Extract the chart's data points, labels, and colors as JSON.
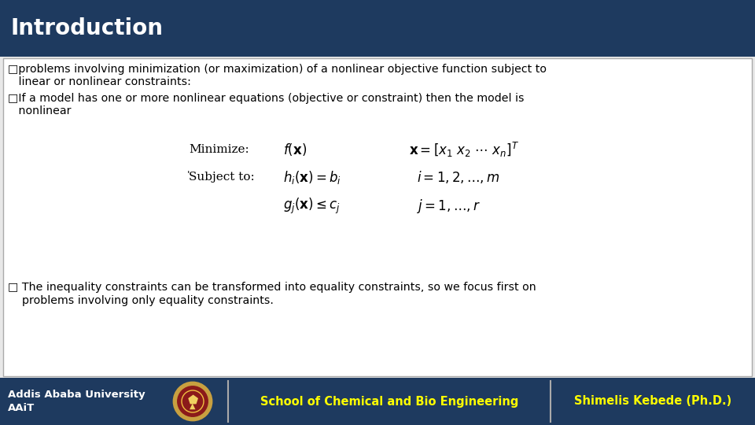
{
  "title": "Introduction",
  "title_bg_color": "#1e3a5f",
  "title_text_color": "#ffffff",
  "title_fontsize": 20,
  "body_bg_color": "#e8e8e8",
  "content_bg_color": "#ffffff",
  "bullet1_line1": "□problems involving minimization (or maximization) of a nonlinear objective function subject to",
  "bullet1_line2": "   linear or nonlinear constraints:",
  "bullet2_line1": "□If a model has one or more nonlinear equations (objective or constraint) then the model is",
  "bullet2_line2": "   nonlinear",
  "bullet3_line1": "□ The inequality constraints can be transformed into equality constraints, so we focus first on",
  "bullet3_line2": "    problems involving only equality constraints.",
  "footer_bg_color": "#1e3a5f",
  "footer_left_text": "Addis Ababa University\nAAiT",
  "footer_center_text": "School of Chemical and Bio Engineering",
  "footer_right_text": "Shimelis Kebede (Ph.D.)",
  "footer_text_color_left": "#ffffff",
  "footer_text_color_center": "#ffff00",
  "footer_text_color_right": "#ffff00"
}
